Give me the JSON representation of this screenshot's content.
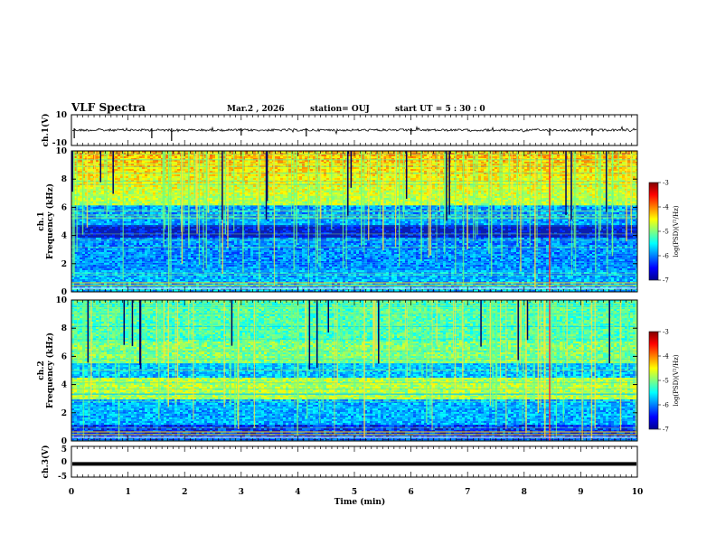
{
  "header": {
    "title": "VLF Spectra",
    "date": "Mar.2 , 2026",
    "station": "station= OUJ",
    "start": "start  UT =   5 : 30 : 0"
  },
  "chart_data": [
    {
      "type": "line",
      "name": "ch.1 waveform",
      "ylabel": "ch.1(V)",
      "ylim": [
        -10,
        10
      ],
      "yticks": [
        "10",
        "-10"
      ],
      "baseline_value": 0,
      "description": "noisy waveform around 0 V with occasional spikes"
    },
    {
      "type": "heatmap",
      "name": "ch.1 spectrogram",
      "ylabel_ch": "ch.1",
      "ylabel": "Frequency (kHz)",
      "ylim": [
        0,
        10
      ],
      "yticks": [
        "0",
        "2",
        "4",
        "6",
        "8",
        "10"
      ],
      "colorbar": {
        "label": "log(PSD)(V²/Hz)",
        "range": [
          -7,
          -3
        ],
        "ticks": [
          "-3",
          "-4",
          "-5",
          "-6",
          "-7"
        ]
      }
    },
    {
      "type": "heatmap",
      "name": "ch.2 spectrogram",
      "ylabel_ch": "ch.2",
      "ylabel": "Frequency (kHz)",
      "ylim": [
        0,
        10
      ],
      "yticks": [
        "0",
        "2",
        "4",
        "6",
        "8",
        "10"
      ],
      "colorbar": {
        "label": "log(PSD)(V²/Hz)",
        "range": [
          -7,
          -3
        ],
        "ticks": [
          "-3",
          "-4",
          "-5",
          "-6",
          "-7"
        ]
      }
    },
    {
      "type": "line",
      "name": "ch.3 waveform",
      "ylabel": "ch.3(V)",
      "ylim": [
        -5,
        5
      ],
      "yticks": [
        "5",
        "0",
        "-5"
      ],
      "level_value": -0.7
    }
  ],
  "xaxis": {
    "label": "Time  (min)",
    "range": [
      0,
      10
    ],
    "ticks": [
      "0",
      "1",
      "2",
      "3",
      "4",
      "5",
      "6",
      "7",
      "8",
      "9",
      "10"
    ]
  }
}
